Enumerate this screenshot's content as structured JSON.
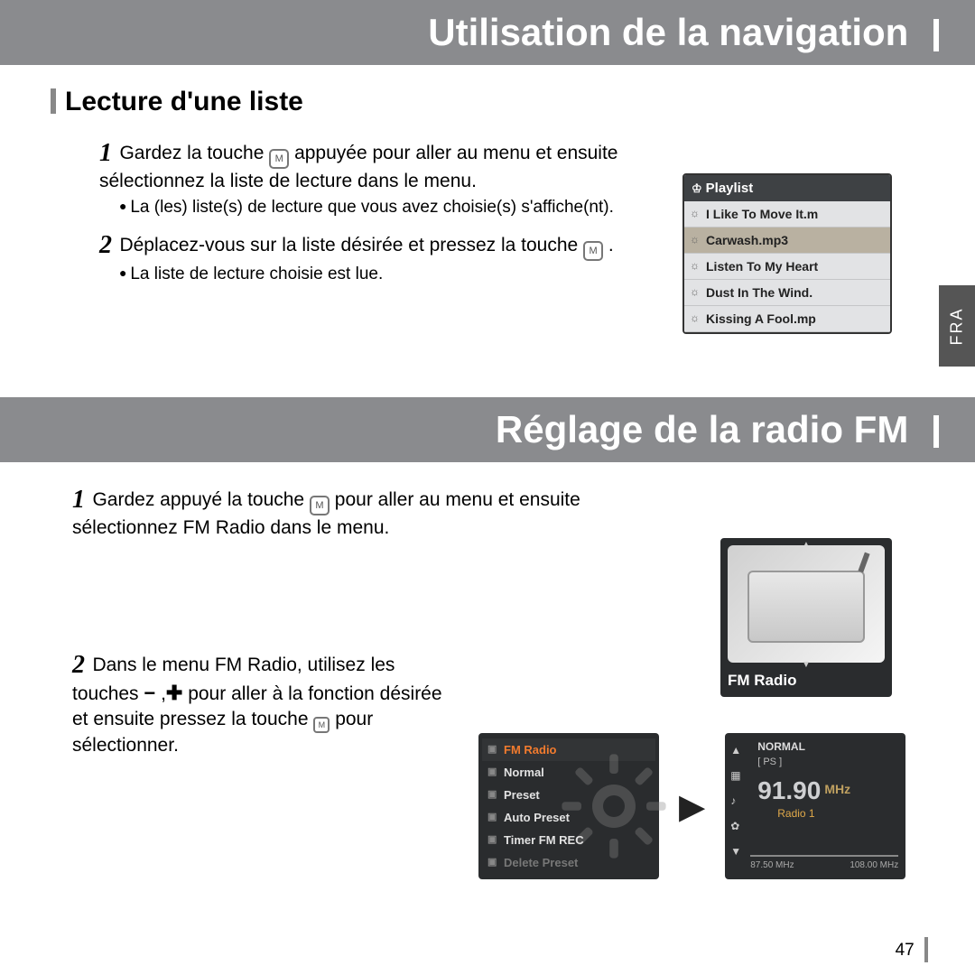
{
  "header1": "Utilisation de la navigation",
  "header2": "Réglage de la radio FM",
  "sideTab": "FRA",
  "pageNum": "47",
  "section1": {
    "heading": "Lecture d'une liste",
    "step1_pre": "Gardez la touche ",
    "step1_post": " appuyée pour aller au menu et ensuite sélectionnez la liste de lecture dans le menu.",
    "step1_bullet": "La (les) liste(s) de lecture que vous avez choisie(s) s'affiche(nt).",
    "step2_pre": "Déplacez-vous sur la liste désirée et pressez la touche ",
    "step2_post": " .",
    "step2_bullet": "La liste de lecture choisie est lue."
  },
  "section2": {
    "step1_pre": "Gardez appuyé la touche ",
    "step1_post": " pour aller au menu et ensuite sélectionnez FM Radio dans le menu.",
    "step2_pre": "Dans le menu FM Radio, utilisez les touches ",
    "step2_mid": " pour aller à la fonction désirée et ensuite pressez la touche ",
    "step2_post": " pour sélectionner."
  },
  "playlist": {
    "title": "Playlist",
    "selectedIndex": 1,
    "items": [
      "I Like To Move It.m",
      "Carwash.mp3",
      "Listen To My Heart",
      "Dust In The Wind.",
      "Kissing A Fool.mp"
    ]
  },
  "fmIcon": {
    "label": "FM Radio"
  },
  "fmMenu": {
    "items": [
      {
        "label": "FM Radio",
        "style": "head"
      },
      {
        "label": "Normal",
        "style": "norm"
      },
      {
        "label": "Preset",
        "style": "norm"
      },
      {
        "label": "Auto Preset",
        "style": "norm"
      },
      {
        "label": "Timer FM REC",
        "style": "norm"
      },
      {
        "label": "Delete Preset",
        "style": "dim"
      }
    ]
  },
  "tuner": {
    "mode": "NORMAL",
    "ps": "[ PS ]",
    "freq": "91.90",
    "unit": "MHz",
    "station": "Radio 1",
    "scaleLow": "87.50 MHz",
    "scaleHigh": "108.00 MHz"
  },
  "colors": {
    "headerBg": "#8a8b8e",
    "headerText": "#ffffff",
    "deviceBg": "#2a2c2e",
    "selectRow": "#b9b1a1",
    "accentOrange": "#f27b2e"
  }
}
